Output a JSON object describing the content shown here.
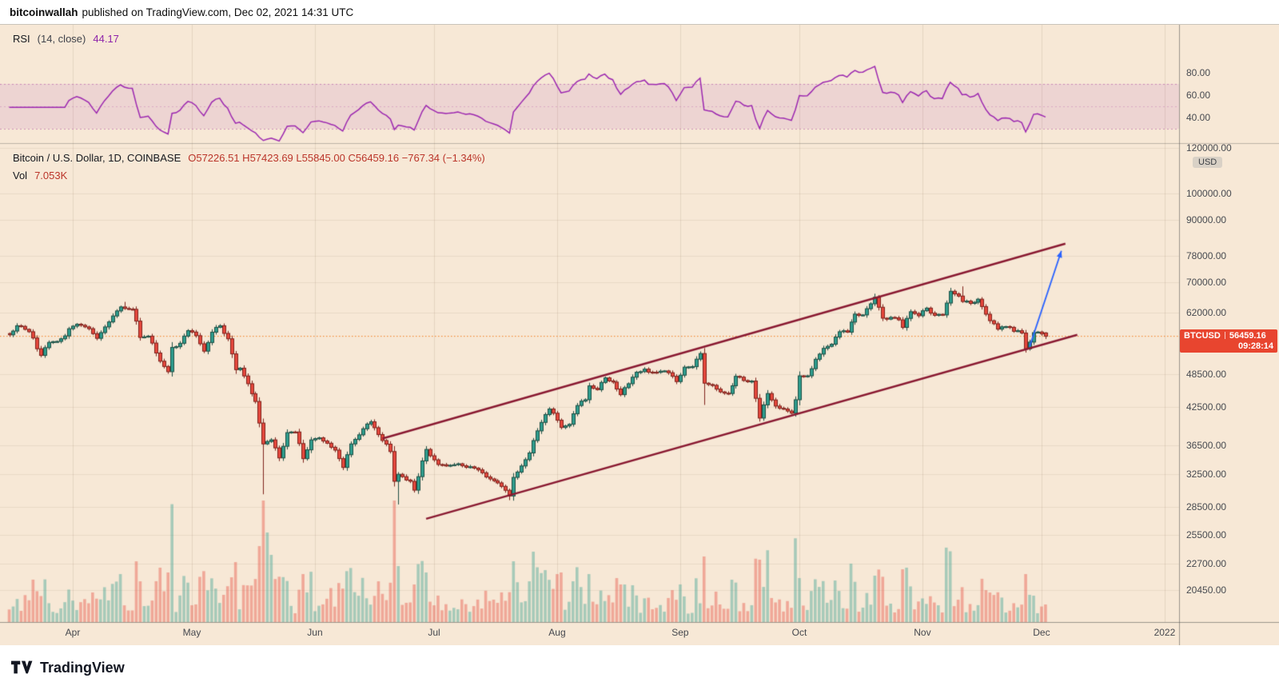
{
  "header": {
    "author": "bitcoinwallah",
    "published": "published on TradingView.com, Dec 02, 2021 14:31 UTC"
  },
  "footer": {
    "brand": "TradingView"
  },
  "rsi_pane": {
    "legend": {
      "name": "RSI",
      "params": "(14, close)",
      "value": "44.17"
    }
  },
  "main_pane": {
    "legend": {
      "symbol": "Bitcoin / U.S. Dollar, 1D, COINBASE",
      "values": "O57226.51  H57423.69  L55845.00  C56459.16  −767.34 (−1.34%)"
    },
    "vol_label": "Vol",
    "vol_value": "7.053K",
    "price_axis": {
      "currency_badge": "USD"
    },
    "price_badge": {
      "symbol": "BTCUSD",
      "price": "56459.16",
      "countdown": "09:28:14"
    }
  },
  "colors": {
    "chart_bg": "#f7e8d6",
    "grid_v": "rgba(120,94,69,0.14)",
    "grid_h": "rgba(120,94,69,0.10)",
    "rsi_line": "#9c27b0",
    "rsi_band": "rgba(156,39,176,0.10)",
    "rsi_dash": "rgba(171,71,160,0.55)",
    "rsi_dash_mid": "rgba(171,71,160,0.30)",
    "up": "#2f9d8e",
    "up_border": "#1d4f44",
    "down": "#e6483d",
    "down_border": "#7e221c",
    "vol_up": "rgba(47,157,142,0.40)",
    "vol_down": "rgba(230,72,61,0.40)",
    "channel": "#8a1a32",
    "arrow": "#2962ff",
    "price_line": "#f57c20",
    "badge_bg": "#e8452f",
    "sep": "rgba(80,80,80,0.55)",
    "pane_sep": "rgba(80,80,80,0.35)"
  },
  "chart_data": {
    "type": "candlestick+volume+rsi",
    "symbol": "BTCUSD",
    "exchange": "COINBASE",
    "timeframe": "1D",
    "x_start_date": "2021-03-16",
    "x_end_date": "2021-12-02",
    "y_scale": "log",
    "grid": true,
    "y_axis_ticks": [
      120000,
      100000,
      90000,
      78000,
      70000,
      62000,
      48500,
      42500,
      36500,
      32500,
      28500,
      25500,
      22700,
      20450
    ],
    "x_ticks": [
      {
        "label": "Apr",
        "t": 16
      },
      {
        "label": "May",
        "t": 46
      },
      {
        "label": "Jun",
        "t": 77
      },
      {
        "label": "Jul",
        "t": 107
      },
      {
        "label": "Aug",
        "t": 138
      },
      {
        "label": "Sep",
        "t": 169
      },
      {
        "label": "Oct",
        "t": 199
      },
      {
        "label": "Nov",
        "t": 230
      },
      {
        "label": "Dec",
        "t": 260
      },
      {
        "label": "2022",
        "t": 291
      }
    ],
    "last": {
      "open": 57226.51,
      "high": 57423.69,
      "low": 55845.0,
      "close": 56459.16,
      "change": -767.34,
      "change_pct": -1.34,
      "volume_display": "7.053K"
    },
    "rsi": {
      "period": 14,
      "source": "close",
      "current": 44.17,
      "bands": [
        30,
        70
      ],
      "axis_ticks": [
        80,
        60,
        40
      ]
    },
    "close_anchors": [
      [
        0,
        56800
      ],
      [
        2,
        58900
      ],
      [
        5,
        57500
      ],
      [
        8,
        52300
      ],
      [
        10,
        55100
      ],
      [
        13,
        55900
      ],
      [
        16,
        58800
      ],
      [
        18,
        59000
      ],
      [
        20,
        58200
      ],
      [
        22,
        56000
      ],
      [
        25,
        59800
      ],
      [
        28,
        63500
      ],
      [
        29,
        63100
      ],
      [
        31,
        62900
      ],
      [
        32,
        60000
      ],
      [
        33,
        56200
      ],
      [
        35,
        56500
      ],
      [
        38,
        51100
      ],
      [
        40,
        49000
      ],
      [
        41,
        54000
      ],
      [
        43,
        54900
      ],
      [
        45,
        57750
      ],
      [
        47,
        56600
      ],
      [
        49,
        53200
      ],
      [
        51,
        57400
      ],
      [
        53,
        58900
      ],
      [
        55,
        55900
      ],
      [
        57,
        49400
      ],
      [
        58,
        49700
      ],
      [
        60,
        46700
      ],
      [
        62,
        43500
      ],
      [
        64,
        36700
      ],
      [
        66,
        37300
      ],
      [
        68,
        34700
      ],
      [
        70,
        38400
      ],
      [
        72,
        38500
      ],
      [
        74,
        34600
      ],
      [
        76,
        37300
      ],
      [
        78,
        37600
      ],
      [
        80,
        36800
      ],
      [
        82,
        35800
      ],
      [
        84,
        33400
      ],
      [
        86,
        36700
      ],
      [
        89,
        39000
      ],
      [
        91,
        40100
      ],
      [
        93,
        38100
      ],
      [
        96,
        35600
      ],
      [
        97,
        31600
      ],
      [
        98,
        32500
      ],
      [
        101,
        31600
      ],
      [
        102,
        30500
      ],
      [
        105,
        35900
      ],
      [
        106,
        35000
      ],
      [
        108,
        33800
      ],
      [
        111,
        33700
      ],
      [
        113,
        33900
      ],
      [
        116,
        33500
      ],
      [
        119,
        32700
      ],
      [
        121,
        31900
      ],
      [
        123,
        31400
      ],
      [
        126,
        29800
      ],
      [
        127,
        32100
      ],
      [
        129,
        33600
      ],
      [
        131,
        35400
      ],
      [
        132,
        37200
      ],
      [
        134,
        40000
      ],
      [
        136,
        42200
      ],
      [
        137,
        41500
      ],
      [
        139,
        39200
      ],
      [
        141,
        39700
      ],
      [
        143,
        42800
      ],
      [
        145,
        43800
      ],
      [
        146,
        46300
      ],
      [
        148,
        45600
      ],
      [
        150,
        47800
      ],
      [
        152,
        47000
      ],
      [
        154,
        44700
      ],
      [
        156,
        46700
      ],
      [
        158,
        48900
      ],
      [
        160,
        49500
      ],
      [
        162,
        48900
      ],
      [
        164,
        49100
      ],
      [
        166,
        48800
      ],
      [
        168,
        47100
      ],
      [
        170,
        49900
      ],
      [
        172,
        50000
      ],
      [
        174,
        52700
      ],
      [
        175,
        46800
      ],
      [
        177,
        46400
      ],
      [
        179,
        45200
      ],
      [
        181,
        44900
      ],
      [
        183,
        48100
      ],
      [
        185,
        47300
      ],
      [
        187,
        47200
      ],
      [
        189,
        40700
      ],
      [
        191,
        44900
      ],
      [
        193,
        42700
      ],
      [
        195,
        42200
      ],
      [
        197,
        41500
      ],
      [
        198,
        43800
      ],
      [
        199,
        48200
      ],
      [
        201,
        48200
      ],
      [
        203,
        51500
      ],
      [
        205,
        53800
      ],
      [
        207,
        54700
      ],
      [
        209,
        57500
      ],
      [
        211,
        57400
      ],
      [
        213,
        61700
      ],
      [
        215,
        61500
      ],
      [
        217,
        64300
      ],
      [
        218,
        66000
      ],
      [
        220,
        60700
      ],
      [
        222,
        60900
      ],
      [
        224,
        60300
      ],
      [
        225,
        58500
      ],
      [
        227,
        62300
      ],
      [
        229,
        61300
      ],
      [
        231,
        63200
      ],
      [
        233,
        61400
      ],
      [
        235,
        61500
      ],
      [
        237,
        67600
      ],
      [
        238,
        66900
      ],
      [
        240,
        64900
      ],
      [
        242,
        64400
      ],
      [
        244,
        65500
      ],
      [
        245,
        63600
      ],
      [
        247,
        60100
      ],
      [
        249,
        58100
      ],
      [
        251,
        58700
      ],
      [
        253,
        57600
      ],
      [
        255,
        57200
      ],
      [
        256,
        53700
      ],
      [
        258,
        57300
      ],
      [
        260,
        57000
      ],
      [
        261,
        56459.16
      ]
    ],
    "wick_overrides": {
      "29": {
        "high": 64800
      },
      "64": {
        "low": 30000
      },
      "98": {
        "low": 28800
      },
      "126": {
        "low": 29300
      },
      "175": {
        "low": 42900
      },
      "218": {
        "high": 66950
      },
      "240": {
        "high": 68950
      }
    },
    "volume_spikes": {
      "28": 60,
      "38": 68,
      "40": 62,
      "57": 75,
      "63": 95,
      "64": 152,
      "65": 112,
      "66": 84,
      "74": 60,
      "98": 70,
      "105": 62,
      "127": 76,
      "132": 88,
      "146": 60,
      "175": 82,
      "189": 78,
      "199": 55,
      "218": 58,
      "225": 66,
      "256": 60
    },
    "channel": {
      "lower": [
        [
          105,
          27200
        ],
        [
          269,
          56800
        ]
      ],
      "upper": [
        [
          94,
          37500
        ],
        [
          266,
          81800
        ]
      ]
    },
    "arrow": {
      "from": [
        257,
        54200
      ],
      "to": [
        265,
        79500
      ]
    }
  }
}
